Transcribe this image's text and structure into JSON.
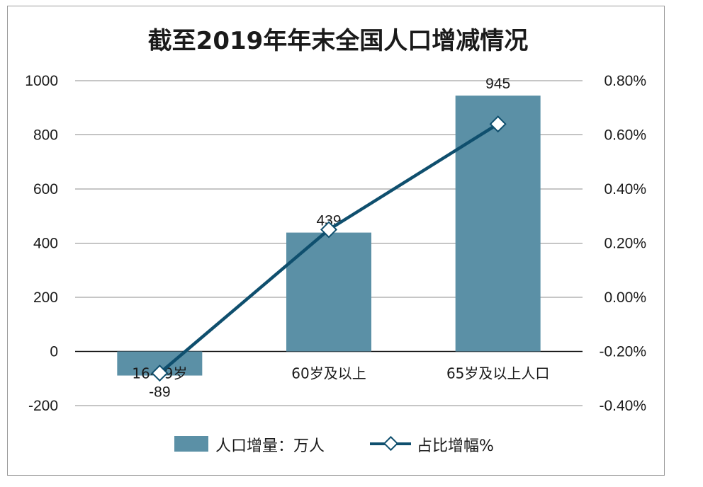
{
  "chart_data": {
    "type": "bar",
    "title": "截至2019年年末全国人口增减情况",
    "categories": [
      "16-59岁",
      "60岁及以上",
      "65岁及以上人口"
    ],
    "series": [
      {
        "name": "人口增量：万人",
        "type": "bar",
        "axis": "left",
        "values": [
          -89,
          439,
          945
        ],
        "data_labels": [
          "-89",
          "439",
          "945"
        ],
        "color": "#5b90a6"
      },
      {
        "name": "占比增幅%",
        "type": "line",
        "axis": "right",
        "values": [
          -0.28,
          0.25,
          0.64
        ],
        "color": "#0f4f6e",
        "marker": "diamond"
      }
    ],
    "y_left": {
      "ylim": [
        -200,
        1000
      ],
      "ticks": [
        -200,
        0,
        200,
        400,
        600,
        800,
        1000
      ],
      "tick_labels": [
        "-200",
        "0",
        "200",
        "400",
        "600",
        "800",
        "1000"
      ]
    },
    "y_right": {
      "ylim": [
        -0.4,
        0.8
      ],
      "ticks": [
        -0.4,
        -0.2,
        0.0,
        0.2,
        0.4,
        0.6,
        0.8
      ],
      "tick_labels": [
        "-0.40%",
        "-0.20%",
        "0.00%",
        "0.20%",
        "0.40%",
        "0.60%",
        "0.80%"
      ]
    },
    "grid": true,
    "legend": "bottom"
  }
}
